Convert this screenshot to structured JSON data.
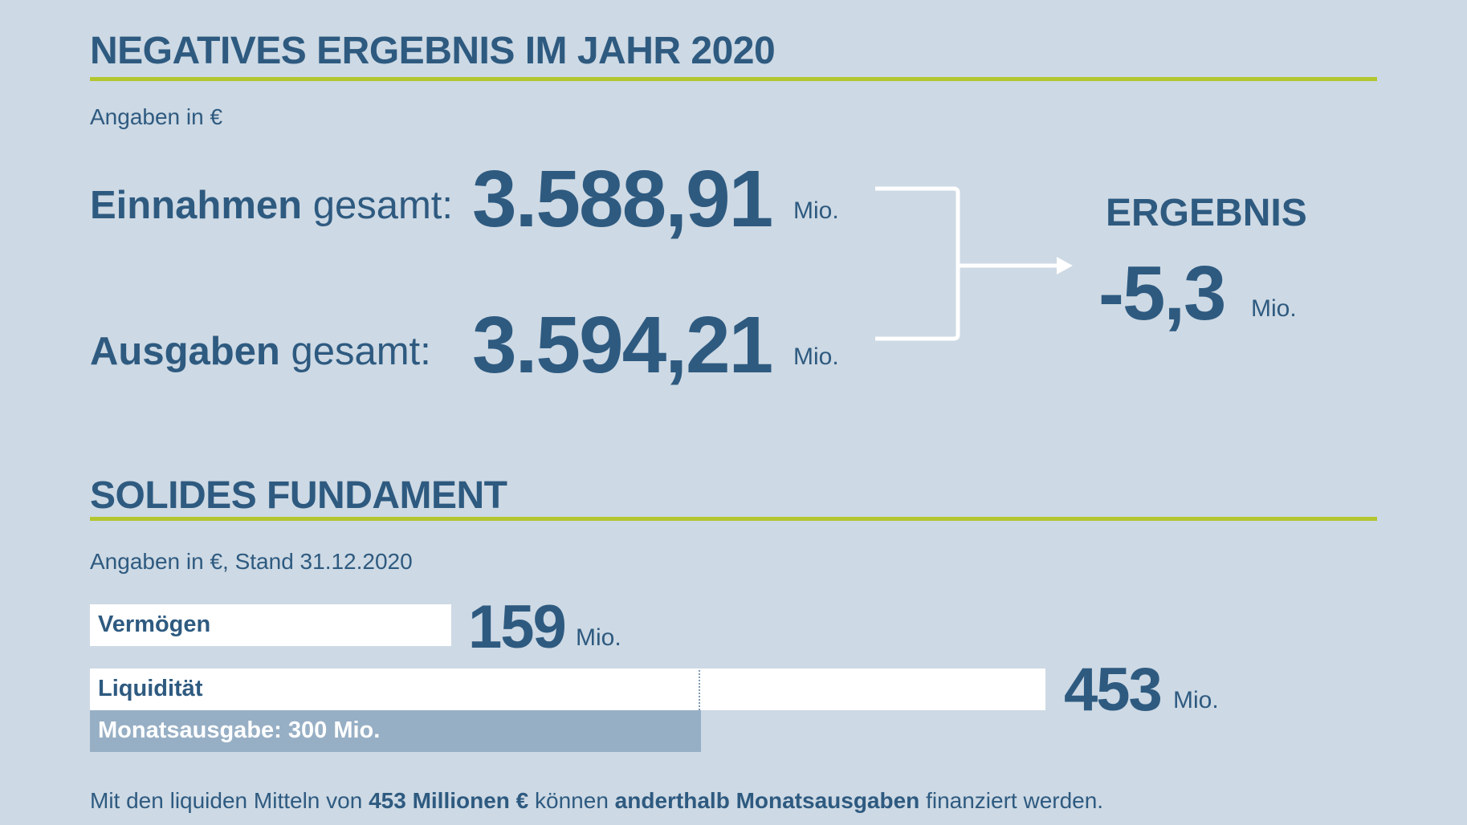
{
  "section1": {
    "title": "NEGATIVES ERGEBNIS IM JAHR 2020",
    "note": "Angaben in €",
    "einnahmen": {
      "bold": "Einnahmen",
      "rest": " gesamt:",
      "value": "3.588,91",
      "unit": "Mio."
    },
    "ausgaben": {
      "bold": "Ausgaben",
      "rest": " gesamt:",
      "value": "3.594,21",
      "unit": "Mio."
    },
    "ergebnis": {
      "label": "ERGEBNIS",
      "value": "-5,3",
      "unit": "Mio."
    }
  },
  "section2": {
    "title": "SOLIDES FUNDAMENT",
    "note": "Angaben in €, Stand 31.12.2020",
    "vermoegen": {
      "label": "Vermögen",
      "value": "159",
      "unit": "Mio."
    },
    "liquiditaet": {
      "label": "Liquidität",
      "value": "453",
      "unit": "Mio."
    },
    "monatsausgabe": {
      "label": "Monatsausgabe: 300 Mio."
    },
    "footer": {
      "t1": "Mit den liquiden Mitteln von ",
      "b1": "453 Millionen €",
      "t2": " können ",
      "b2": "anderthalb Monatsausgaben",
      "t3": " finanziert werden."
    }
  },
  "colors": {
    "background": "#cdd9e4",
    "text": "#2e5a80",
    "accent": "#b3c62f",
    "bar": "#ffffff",
    "bar_secondary": "#97afc5"
  },
  "chart_data": {
    "type": "bar",
    "orientation": "horizontal",
    "categories": [
      "Vermögen",
      "Liquidität",
      "Monatsausgabe"
    ],
    "values": [
      159,
      453,
      300
    ],
    "unit": "Mio. €"
  }
}
